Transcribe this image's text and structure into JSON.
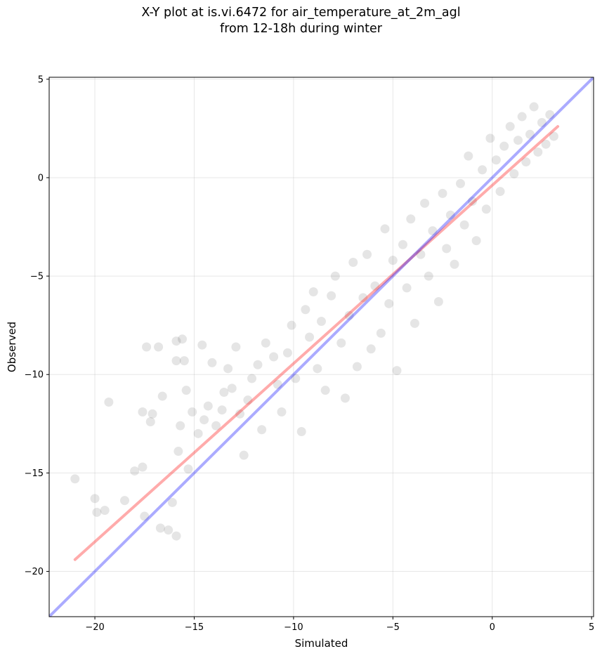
{
  "chart_data": {
    "type": "scatter",
    "title": "X-Y plot at is.vi.6472 for air_temperature_at_2m_agl",
    "subtitle": "from 12-18h during winter",
    "xlabel": "Simulated",
    "ylabel": "Observed",
    "xlim": [
      -22.3,
      5.1
    ],
    "ylim": [
      -22.3,
      5.1
    ],
    "xticks": [
      -20,
      -15,
      -10,
      -5,
      0,
      5
    ],
    "yticks": [
      -20,
      -15,
      -10,
      -5,
      0,
      5
    ],
    "xtick_labels": [
      "−20",
      "−15",
      "−10",
      "−5",
      "0",
      "5"
    ],
    "ytick_labels": [
      "−20",
      "−15",
      "−10",
      "−5",
      "0",
      "5"
    ],
    "grid": true,
    "colors": {
      "points": "#000000",
      "fit_line": "#ff0000",
      "identity_line": "#0000ff"
    },
    "lines": [
      {
        "kind": "regression-fit",
        "color": "#ff0000",
        "x": [
          -21.0,
          3.3
        ],
        "y": [
          -19.4,
          2.6
        ]
      },
      {
        "kind": "identity",
        "color": "#0000ff",
        "x": [
          -22.3,
          5.1
        ],
        "y": [
          -22.3,
          5.1
        ]
      }
    ],
    "points": [
      [
        -21.0,
        -15.3
      ],
      [
        -20.0,
        -16.3
      ],
      [
        -19.9,
        -17.0
      ],
      [
        -19.3,
        -11.4
      ],
      [
        -19.5,
        -16.9
      ],
      [
        -18.5,
        -16.4
      ],
      [
        -18.0,
        -14.9
      ],
      [
        -17.6,
        -14.7
      ],
      [
        -17.5,
        -17.2
      ],
      [
        -17.6,
        -11.9
      ],
      [
        -17.2,
        -12.4
      ],
      [
        -17.1,
        -12.0
      ],
      [
        -17.4,
        -8.6
      ],
      [
        -16.8,
        -8.6
      ],
      [
        -16.6,
        -11.1
      ],
      [
        -16.7,
        -17.8
      ],
      [
        -16.3,
        -17.9
      ],
      [
        -16.1,
        -16.5
      ],
      [
        -15.9,
        -9.3
      ],
      [
        -15.6,
        -8.2
      ],
      [
        -15.5,
        -9.3
      ],
      [
        -15.9,
        -8.3
      ],
      [
        -15.8,
        -13.9
      ],
      [
        -15.9,
        -18.2
      ],
      [
        -15.4,
        -10.8
      ],
      [
        -15.3,
        -14.8
      ],
      [
        -15.7,
        -12.6
      ],
      [
        -15.1,
        -11.9
      ],
      [
        -14.8,
        -13.0
      ],
      [
        -14.5,
        -12.3
      ],
      [
        -14.3,
        -11.6
      ],
      [
        -14.6,
        -8.5
      ],
      [
        -14.1,
        -9.4
      ],
      [
        -13.9,
        -12.6
      ],
      [
        -13.6,
        -11.8
      ],
      [
        -13.5,
        -10.9
      ],
      [
        -13.3,
        -9.7
      ],
      [
        -13.1,
        -10.7
      ],
      [
        -12.9,
        -8.6
      ],
      [
        -12.7,
        -12.0
      ],
      [
        -12.5,
        -14.1
      ],
      [
        -12.3,
        -11.3
      ],
      [
        -12.1,
        -10.2
      ],
      [
        -11.8,
        -9.5
      ],
      [
        -11.6,
        -12.8
      ],
      [
        -11.4,
        -8.4
      ],
      [
        -11.0,
        -9.1
      ],
      [
        -10.8,
        -10.5
      ],
      [
        -10.6,
        -11.9
      ],
      [
        -10.3,
        -8.9
      ],
      [
        -10.1,
        -7.5
      ],
      [
        -9.9,
        -10.2
      ],
      [
        -9.6,
        -12.9
      ],
      [
        -9.4,
        -6.7
      ],
      [
        -9.2,
        -8.1
      ],
      [
        -9.0,
        -5.8
      ],
      [
        -8.8,
        -9.7
      ],
      [
        -8.6,
        -7.3
      ],
      [
        -8.4,
        -10.8
      ],
      [
        -8.1,
        -6.0
      ],
      [
        -7.9,
        -5.0
      ],
      [
        -7.6,
        -8.4
      ],
      [
        -7.4,
        -11.2
      ],
      [
        -7.2,
        -7.0
      ],
      [
        -7.0,
        -4.3
      ],
      [
        -6.8,
        -9.6
      ],
      [
        -6.5,
        -6.1
      ],
      [
        -6.3,
        -3.9
      ],
      [
        -6.1,
        -8.7
      ],
      [
        -5.9,
        -5.5
      ],
      [
        -5.6,
        -7.9
      ],
      [
        -5.4,
        -2.6
      ],
      [
        -5.2,
        -6.4
      ],
      [
        -5.0,
        -4.2
      ],
      [
        -4.8,
        -9.8
      ],
      [
        -4.5,
        -3.4
      ],
      [
        -4.3,
        -5.6
      ],
      [
        -4.1,
        -2.1
      ],
      [
        -3.9,
        -7.4
      ],
      [
        -3.6,
        -3.9
      ],
      [
        -3.4,
        -1.3
      ],
      [
        -3.2,
        -5.0
      ],
      [
        -3.0,
        -2.7
      ],
      [
        -2.7,
        -6.3
      ],
      [
        -2.5,
        -0.8
      ],
      [
        -2.3,
        -3.6
      ],
      [
        -2.1,
        -1.9
      ],
      [
        -1.9,
        -4.4
      ],
      [
        -1.6,
        -0.3
      ],
      [
        -1.4,
        -2.4
      ],
      [
        -1.2,
        1.1
      ],
      [
        -1.0,
        -1.2
      ],
      [
        -0.8,
        -3.2
      ],
      [
        -0.5,
        0.4
      ],
      [
        -0.3,
        -1.6
      ],
      [
        -0.1,
        2.0
      ],
      [
        0.2,
        0.9
      ],
      [
        0.4,
        -0.7
      ],
      [
        0.6,
        1.6
      ],
      [
        0.9,
        2.6
      ],
      [
        1.1,
        0.2
      ],
      [
        1.3,
        1.9
      ],
      [
        1.5,
        3.1
      ],
      [
        1.7,
        0.8
      ],
      [
        1.9,
        2.2
      ],
      [
        2.1,
        3.6
      ],
      [
        2.3,
        1.3
      ],
      [
        2.5,
        2.8
      ],
      [
        2.7,
        1.7
      ],
      [
        2.9,
        3.2
      ],
      [
        3.1,
        2.1
      ]
    ]
  }
}
